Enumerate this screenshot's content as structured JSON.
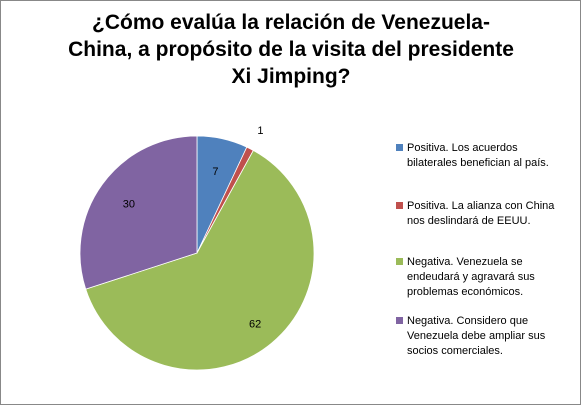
{
  "title_lines": [
    "¿Cómo evalúa la relación de Venezuela-",
    "China, a propósito de la visita del presidente",
    "Xi Jimping?"
  ],
  "chart_data": {
    "type": "pie",
    "title": "¿Cómo evalúa la relación de Venezuela-China, a propósito de la visita del presidente Xi Jimping?",
    "legend_position": "right",
    "slices": [
      {
        "label": "Positiva. Los acuerdos bilaterales benefician al país.",
        "value": 7,
        "value_label": "7",
        "color": "#4F81BD"
      },
      {
        "label": "Positiva. La alianza con China nos deslindará de EEUU.",
        "value": 1,
        "value_label": "1",
        "color": "#C0504D"
      },
      {
        "label": "Negativa. Venezuela se endeudará y agravará sus problemas económicos.",
        "value": 62,
        "value_label": "62",
        "color": "#9BBB59"
      },
      {
        "label": "Negativa. Considero que Venezuela debe ampliar sus socios comerciales.",
        "value": 30,
        "value_label": "30",
        "color": "#8064A2"
      }
    ],
    "legend_lines": [
      [
        "Positiva. Los acuerdos",
        "bilaterales benefician al país."
      ],
      [
        "Positiva. La alianza con China",
        "nos deslindará de EEUU."
      ],
      [
        "Negativa. Venezuela se",
        "endeudará y agravará sus",
        "problemas económicos."
      ],
      [
        "Negativa. Considero que",
        "Venezuela debe ampliar sus",
        "socios comerciales."
      ]
    ]
  }
}
